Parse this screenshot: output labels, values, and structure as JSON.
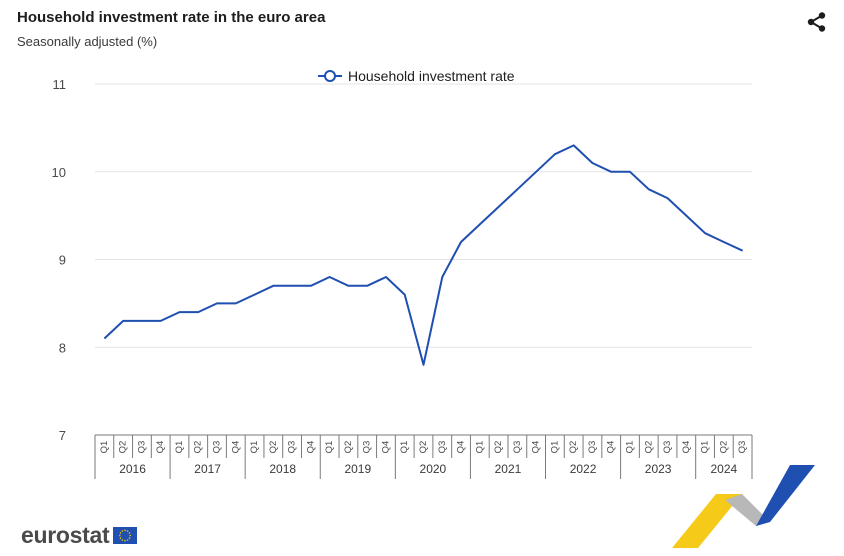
{
  "header": {
    "title": "Household investment rate in the euro area",
    "subtitle": "Seasonally adjusted (%)"
  },
  "icons": {
    "share": "share-icon",
    "flag": "eu-flag-icon"
  },
  "branding": {
    "logo_text": "eurostat"
  },
  "colors": {
    "series": "#1f4fb0",
    "grid": "#e3e3e3",
    "accent_yellow": "#f5c400",
    "accent_blue": "#1f4fb0"
  },
  "chart_data": {
    "type": "line",
    "title": "Household investment rate in the euro area",
    "subtitle": "Seasonally adjusted (%)",
    "xlabel": "",
    "ylabel": "",
    "ylim": [
      7,
      11
    ],
    "yticks": [
      7,
      8,
      9,
      10,
      11
    ],
    "grid": true,
    "legend_position": "top-center",
    "quarter_labels": [
      "Q1",
      "Q2",
      "Q3",
      "Q4"
    ],
    "years": [
      "2016",
      "2017",
      "2018",
      "2019",
      "2020",
      "2021",
      "2022",
      "2023",
      "2024"
    ],
    "x": [
      "2016Q1",
      "2016Q2",
      "2016Q3",
      "2016Q4",
      "2017Q1",
      "2017Q2",
      "2017Q3",
      "2017Q4",
      "2018Q1",
      "2018Q2",
      "2018Q3",
      "2018Q4",
      "2019Q1",
      "2019Q2",
      "2019Q3",
      "2019Q4",
      "2020Q1",
      "2020Q2",
      "2020Q3",
      "2020Q4",
      "2021Q1",
      "2021Q2",
      "2021Q3",
      "2021Q4",
      "2022Q1",
      "2022Q2",
      "2022Q3",
      "2022Q4",
      "2023Q1",
      "2023Q2",
      "2023Q3",
      "2023Q4",
      "2024Q1",
      "2024Q2",
      "2024Q3"
    ],
    "series": [
      {
        "name": "Household investment rate",
        "values": [
          8.1,
          8.3,
          8.3,
          8.3,
          8.4,
          8.4,
          8.5,
          8.5,
          8.6,
          8.7,
          8.7,
          8.7,
          8.8,
          8.7,
          8.7,
          8.8,
          8.6,
          7.8,
          8.8,
          9.2,
          9.4,
          9.6,
          9.8,
          10.0,
          10.2,
          10.3,
          10.1,
          10.0,
          10.0,
          9.8,
          9.7,
          9.5,
          9.3,
          9.2,
          9.1
        ]
      }
    ]
  }
}
